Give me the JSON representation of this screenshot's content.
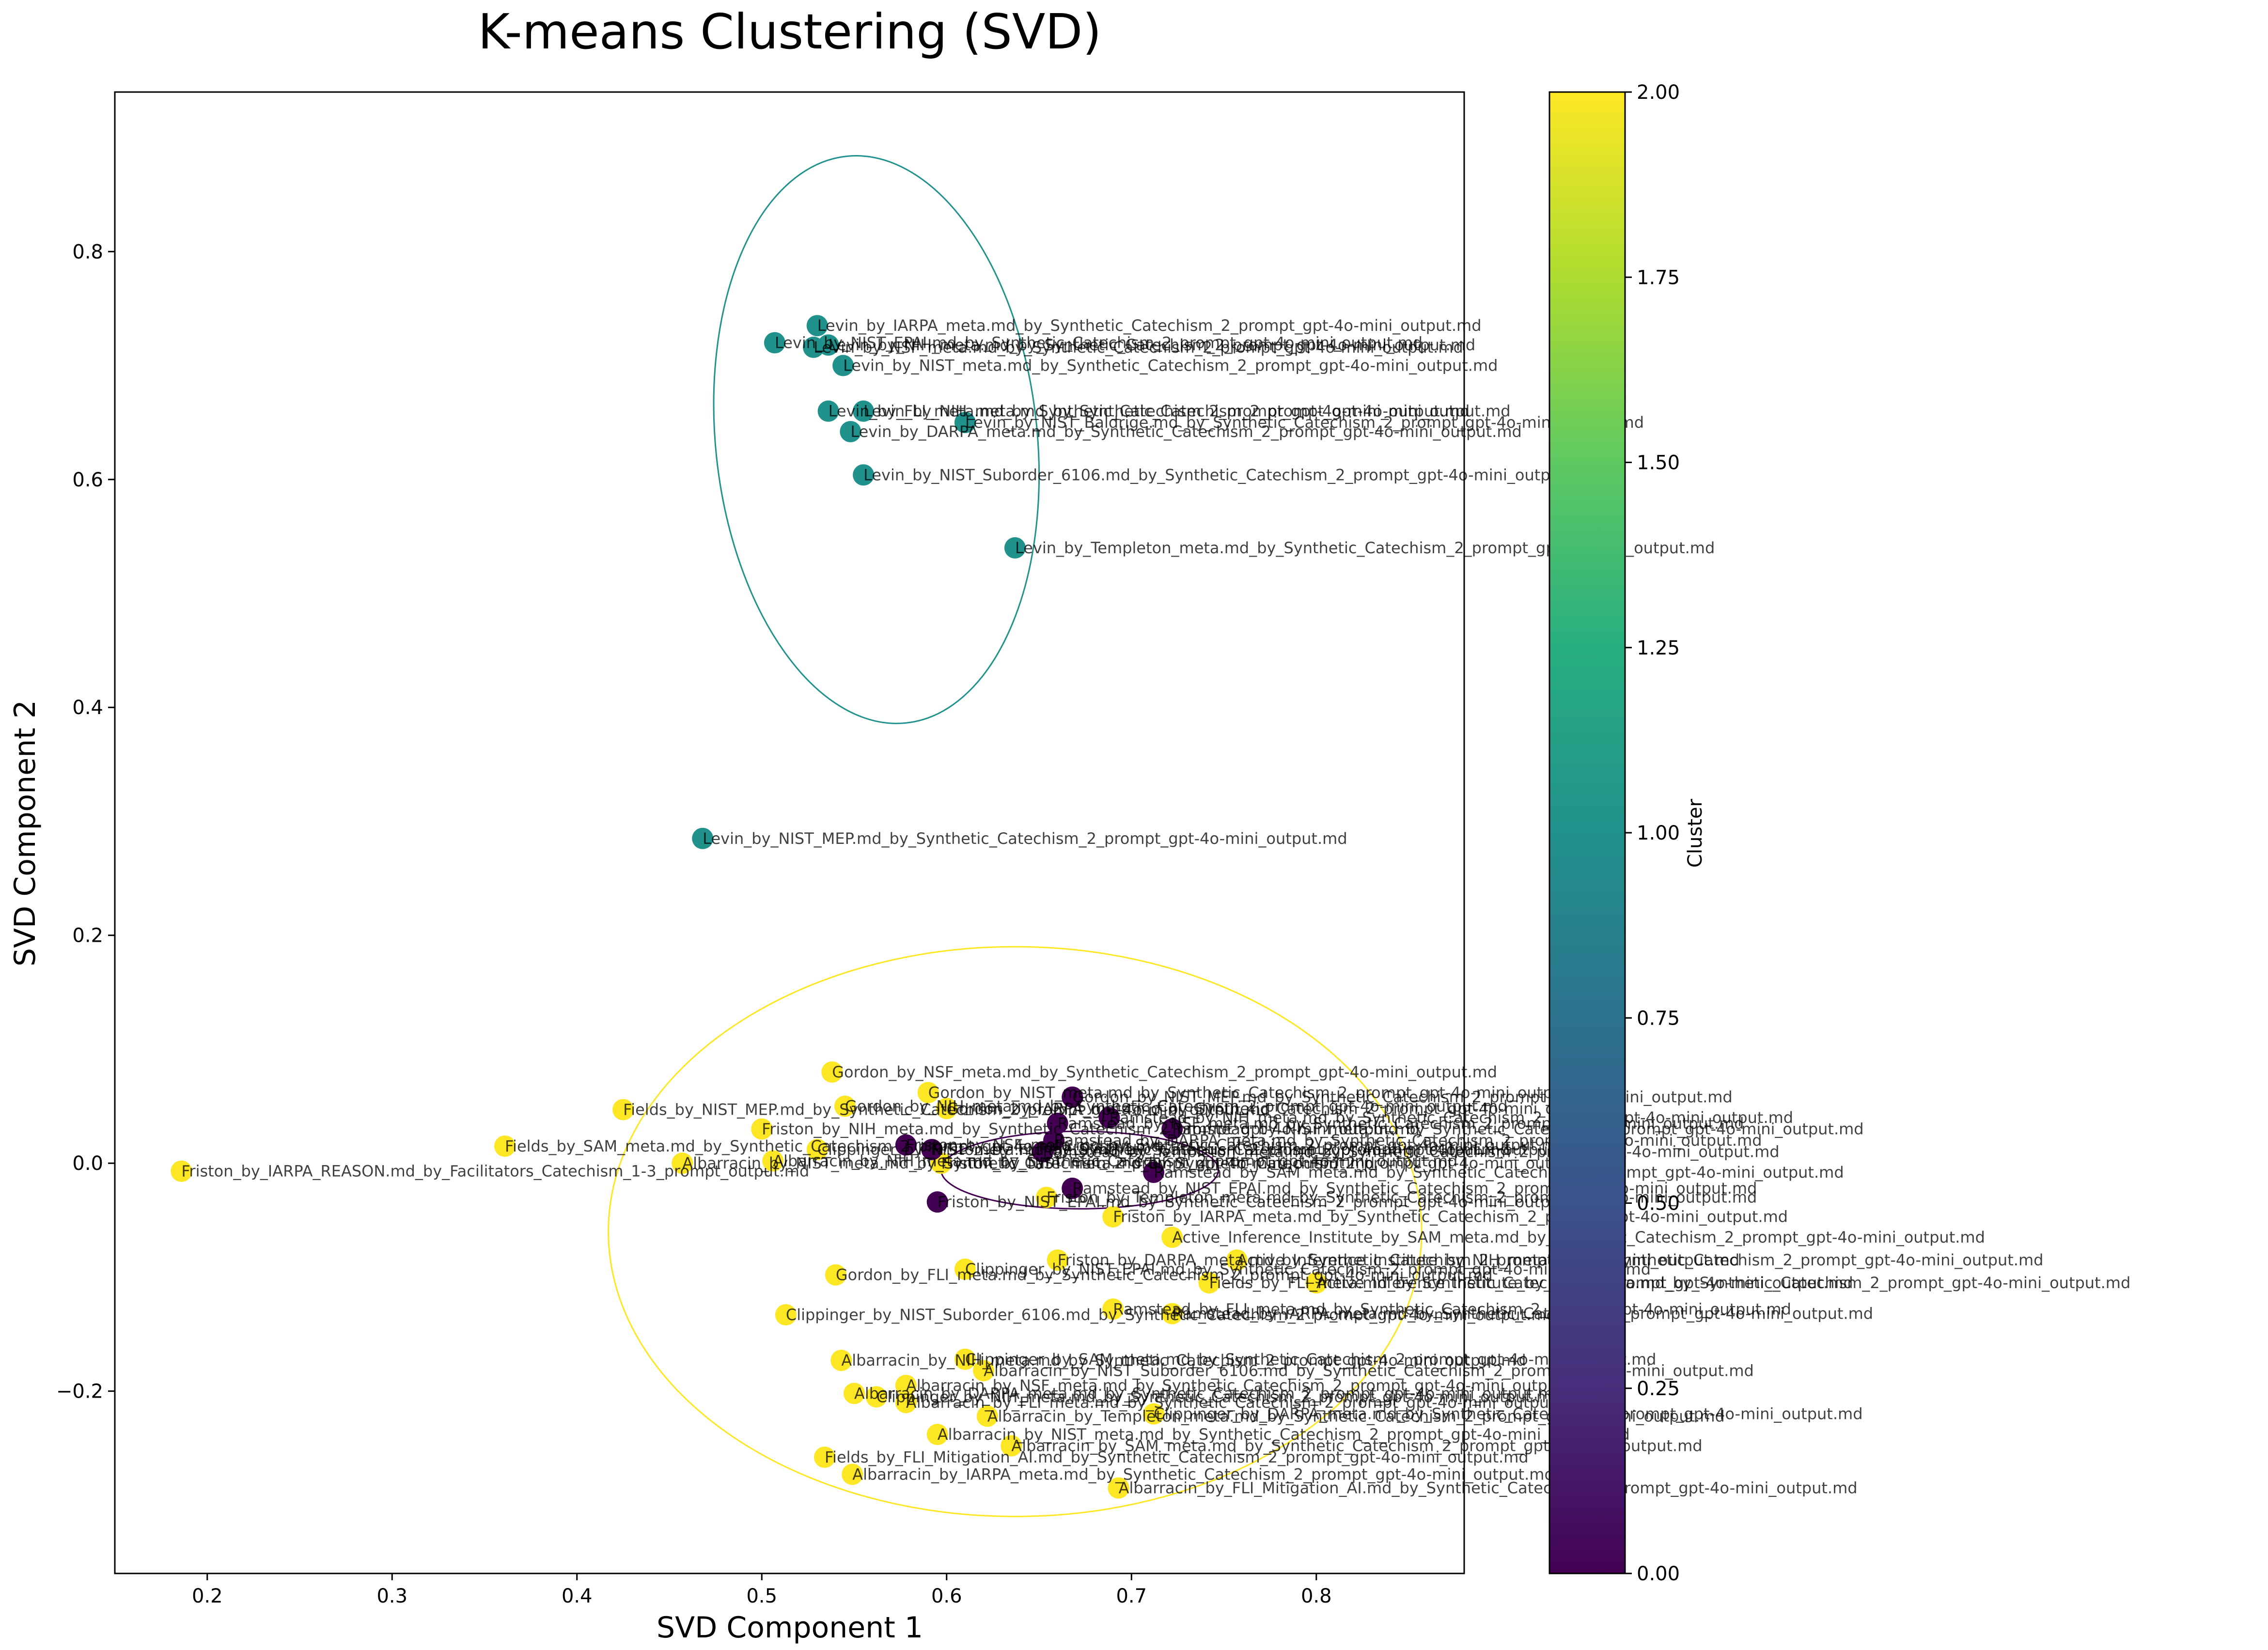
{
  "chart_data": {
    "type": "scatter",
    "title": "K-means Clustering (SVD)",
    "xlabel": "SVD Component 1",
    "ylabel": "SVD Component 2",
    "xlim": [
      0.15,
      0.88
    ],
    "ylim": [
      -0.36,
      0.94
    ],
    "xticks": [
      "0.2",
      "0.3",
      "0.4",
      "0.5",
      "0.6",
      "0.7",
      "0.8"
    ],
    "xtick_values": [
      0.2,
      0.3,
      0.4,
      0.5,
      0.6,
      0.7,
      0.8
    ],
    "yticks": [
      "−0.2",
      "0.0",
      "0.2",
      "0.4",
      "0.6",
      "0.8"
    ],
    "ytick_values": [
      -0.2,
      0.0,
      0.2,
      0.4,
      0.6,
      0.8
    ],
    "grid": false,
    "colormap": "viridis",
    "cluster_colors": [
      "#440154",
      "#21918c",
      "#fde725"
    ],
    "colorbar": {
      "label": "Cluster",
      "range": [
        0.0,
        2.0
      ],
      "ticks": [
        "0.00",
        "0.25",
        "0.50",
        "0.75",
        "1.00",
        "1.25",
        "1.50",
        "1.75",
        "2.00"
      ],
      "tick_values": [
        0.0,
        0.25,
        0.5,
        0.75,
        1.0,
        1.25,
        1.5,
        1.75,
        2.0
      ]
    },
    "ellipses": [
      {
        "cluster": 1,
        "cx": 0.562,
        "cy": 0.635,
        "rx": 0.087,
        "ry": 0.25,
        "angle": 6
      },
      {
        "cluster": 2,
        "cx": 0.637,
        "cy": -0.06,
        "rx": 0.22,
        "ry": 0.25,
        "angle": 0
      },
      {
        "cluster": 0,
        "cx": 0.672,
        "cy": -0.006,
        "rx": 0.075,
        "ry": 0.034,
        "angle": 0
      }
    ],
    "points": [
      {
        "x": 0.53,
        "y": 0.735,
        "c": 1,
        "label": "Levin_by_IARPA_meta.md_by_Synthetic_Catechism_2_prompt_gpt-4o-mini_output.md"
      },
      {
        "x": 0.507,
        "y": 0.72,
        "c": 1,
        "label": "Levin_by_NIST_EPAI.md_by_Synthetic_Catechism_2_prompt_gpt-4o-mini_output.md"
      },
      {
        "x": 0.528,
        "y": 0.716,
        "c": 1,
        "label": "Levin_by_NSF_meta.md_by_Synthetic_Catechism_2_prompt_gpt-4o-mini_output.md"
      },
      {
        "x": 0.536,
        "y": 0.718,
        "c": 1,
        "label": "Levin_by_NIH_meta.md_by_Synthetic_Catechism_2_prompt_gpt-4o-mini_output.md"
      },
      {
        "x": 0.544,
        "y": 0.7,
        "c": 1,
        "label": "Levin_by_NIST_meta.md_by_Synthetic_Catechism_2_prompt_gpt-4o-mini_output.md"
      },
      {
        "x": 0.536,
        "y": 0.66,
        "c": 1,
        "label": "Levin_by_FLI_meta.md_by_Synthetic_Catechism_2_prompt_gpt-4o-mini_output.md"
      },
      {
        "x": 0.555,
        "y": 0.66,
        "c": 1,
        "label": "Levin_by_NIH_meta.md_by_Synthetic_Catechism_2_prompt_gpt-4o-mini_output.md"
      },
      {
        "x": 0.61,
        "y": 0.65,
        "c": 1,
        "label": "Levin_by_NIST_Baldrige.md_by_Synthetic_Catechism_2_prompt_gpt-4o-mini_output.md"
      },
      {
        "x": 0.548,
        "y": 0.642,
        "c": 1,
        "label": "Levin_by_DARPA_meta.md_by_Synthetic_Catechism_2_prompt_gpt-4o-mini_output.md"
      },
      {
        "x": 0.555,
        "y": 0.604,
        "c": 1,
        "label": "Levin_by_NIST_Suborder_6106.md_by_Synthetic_Catechism_2_prompt_gpt-4o-mini_output.md"
      },
      {
        "x": 0.637,
        "y": 0.54,
        "c": 1,
        "label": "Levin_by_Templeton_meta.md_by_Synthetic_Catechism_2_prompt_gpt-4o-mini_output.md"
      },
      {
        "x": 0.468,
        "y": 0.285,
        "c": 1,
        "label": "Levin_by_NIST_MEP.md_by_Synthetic_Catechism_2_prompt_gpt-4o-mini_output.md"
      },
      {
        "x": 0.186,
        "y": -0.007,
        "c": 2,
        "label": "Friston_by_IARPA_REASON.md_by_Facilitators_Catechism_1-3_prompt_output.md"
      },
      {
        "x": 0.361,
        "y": 0.015,
        "c": 2,
        "label": "Fields_by_SAM_meta.md_by_Synthetic_Catechism_2_prompt_gpt-4o-mini_output.md"
      },
      {
        "x": 0.425,
        "y": 0.047,
        "c": 2,
        "label": "Fields_by_NIST_MEP.md_by_Synthetic_Catechism_2_prompt_gpt-4o-mini_output.md"
      },
      {
        "x": 0.457,
        "y": 0.0,
        "c": 2,
        "label": "Albarracin_by_NIST_meta.md_by_Synthetic_Catechism_2_prompt_gpt-4o-mini_output.md"
      },
      {
        "x": 0.5,
        "y": 0.03,
        "c": 2,
        "label": "Friston_by_NIH_meta.md_by_Synthetic_Catechism_2_prompt_gpt-4o-mini_output.md"
      },
      {
        "x": 0.538,
        "y": 0.08,
        "c": 2,
        "label": "Gordon_by_NSF_meta.md_by_Synthetic_Catechism_2_prompt_gpt-4o-mini_output.md"
      },
      {
        "x": 0.545,
        "y": 0.05,
        "c": 2,
        "label": "Gordon_by_NIH_meta.md_by_Synthetic_Catechism_2_prompt_gpt-4o-mini_output.md"
      },
      {
        "x": 0.59,
        "y": 0.062,
        "c": 2,
        "label": "Gordon_by_NIST_meta.md_by_Synthetic_Catechism_2_prompt_gpt-4o-mini_output.md"
      },
      {
        "x": 0.6,
        "y": 0.048,
        "c": 2,
        "label": "Gordon_by_IARPA_meta.md_by_Synthetic_Catechism_2_prompt_gpt-4o-mini_output.md"
      },
      {
        "x": 0.53,
        "y": 0.012,
        "c": 2,
        "label": "Clippinger_by_NIST_meta.md_by_Synthetic_Catechism_2_prompt_gpt-4o-mini_output.md"
      },
      {
        "x": 0.506,
        "y": 0.002,
        "c": 2,
        "label": "Albarracin_by_NIH_meta.md_by_Synthetic_Catechism_2_prompt_gpt-4o-mini_output.md"
      },
      {
        "x": 0.597,
        "y": 0.0,
        "c": 2,
        "label": "Friston_by_NIST_meta.md_by_Synthetic_Catechism_2_prompt_gpt-4o-mini_output.md"
      },
      {
        "x": 0.654,
        "y": -0.03,
        "c": 2,
        "label": "Friston_by_Templeton_meta.md_by_Synthetic_Catechism_2_prompt_gpt-4o-mini_output.md"
      },
      {
        "x": 0.69,
        "y": -0.047,
        "c": 2,
        "label": "Friston_by_IARPA_meta.md_by_Synthetic_Catechism_2_prompt_gpt-4o-mini_output.md"
      },
      {
        "x": 0.722,
        "y": -0.065,
        "c": 2,
        "label": "Active_Inference_Institute_by_SAM_meta.md_by_Synthetic_Catechism_2_prompt_gpt-4o-mini_output.md"
      },
      {
        "x": 0.66,
        "y": -0.085,
        "c": 2,
        "label": "Friston_by_DARPA_meta.md_by_Synthetic_Catechism_2_prompt_gpt-4o-mini_output.md"
      },
      {
        "x": 0.61,
        "y": -0.093,
        "c": 2,
        "label": "Clippinger_by_NIST_EPAI.md_by_Synthetic_Catechism_2_prompt_gpt-4o-mini_output.md"
      },
      {
        "x": 0.54,
        "y": -0.098,
        "c": 2,
        "label": "Gordon_by_FLI_meta.md_by_Synthetic_Catechism_2_prompt_gpt-4o-mini_output.md"
      },
      {
        "x": 0.742,
        "y": -0.105,
        "c": 2,
        "label": "Fields_by_FLI_meta.md_by_Synthetic_Catechism_2_prompt_gpt-4o-mini_output.md"
      },
      {
        "x": 0.8,
        "y": -0.105,
        "c": 2,
        "label": "Active_Inference_Institute_by_NIST_meta.md_by_Synthetic_Catechism_2_prompt_gpt-4o-mini_output.md"
      },
      {
        "x": 0.757,
        "y": -0.085,
        "c": 2,
        "label": "Active_Inference_Institute_by_NIH_meta.md_by_Synthetic_Catechism_2_prompt_gpt-4o-mini_output.md"
      },
      {
        "x": 0.69,
        "y": -0.128,
        "c": 2,
        "label": "Ramstead_by_FLI_meta.md_by_Synthetic_Catechism_2_prompt_gpt-4o-mini_output.md"
      },
      {
        "x": 0.722,
        "y": -0.132,
        "c": 2,
        "label": "Ramstead_by_IARPA_meta.md_by_Synthetic_Catechism_2_prompt_gpt-4o-mini_output.md"
      },
      {
        "x": 0.513,
        "y": -0.133,
        "c": 2,
        "label": "Clippinger_by_NIST_Suborder_6106.md_by_Synthetic_Catechism_2_prompt_gpt-4o-mini_output.md"
      },
      {
        "x": 0.543,
        "y": -0.173,
        "c": 2,
        "label": "Albarracin_by_NIH_meta.md_by_Synthetic_Catechism_2_prompt_gpt-4o-mini_output.md"
      },
      {
        "x": 0.61,
        "y": -0.172,
        "c": 2,
        "label": "Clippinger_by_SAM_meta.md_by_Synthetic_Catechism_2_prompt_gpt-4o-mini_output.md"
      },
      {
        "x": 0.62,
        "y": -0.182,
        "c": 2,
        "label": "Albarracin_by_NIST_Suborder_6106.md_by_Synthetic_Catechism_2_prompt_gpt-4o-mini_output.md"
      },
      {
        "x": 0.578,
        "y": -0.195,
        "c": 2,
        "label": "Albarracin_by_NSF_meta.md_by_Synthetic_Catechism_2_prompt_gpt-4o-mini_output.md"
      },
      {
        "x": 0.55,
        "y": -0.202,
        "c": 2,
        "label": "Albarracin_by_DARPA_meta.md_by_Synthetic_Catechism_2_prompt_gpt-4o-mini_output.md"
      },
      {
        "x": 0.562,
        "y": -0.205,
        "c": 2,
        "label": "Clippinger_by_NIH_meta.md_by_Synthetic_Catechism_2_prompt_gpt-4o-mini_output.md"
      },
      {
        "x": 0.578,
        "y": -0.21,
        "c": 2,
        "label": "Albarracin_by_FLI_meta.md_by_Synthetic_Catechism_2_prompt_gpt-4o-mini_output.md"
      },
      {
        "x": 0.622,
        "y": -0.222,
        "c": 2,
        "label": "Albarracin_by_Templeton_meta.md_by_Synthetic_Catechism_2_prompt_gpt-4o-mini_output.md"
      },
      {
        "x": 0.712,
        "y": -0.22,
        "c": 2,
        "label": "Clippinger_by_DARPA_meta.md_by_Synthetic_Catechism_2_prompt_gpt-4o-mini_output.md"
      },
      {
        "x": 0.595,
        "y": -0.238,
        "c": 2,
        "label": "Albarracin_by_NIST_meta.md_by_Synthetic_Catechism_2_prompt_gpt-4o-mini_output.md"
      },
      {
        "x": 0.635,
        "y": -0.248,
        "c": 2,
        "label": "Albarracin_by_SAM_meta.md_by_Synthetic_Catechism_2_prompt_gpt-4o-mini_output.md"
      },
      {
        "x": 0.534,
        "y": -0.258,
        "c": 2,
        "label": "Fields_by_FLI_Mitigation_AI.md_by_Synthetic_Catechism_2_prompt_gpt-4o-mini_output.md"
      },
      {
        "x": 0.549,
        "y": -0.273,
        "c": 2,
        "label": "Albarracin_by_IARPA_meta.md_by_Synthetic_Catechism_2_prompt_gpt-4o-mini_output.md"
      },
      {
        "x": 0.693,
        "y": -0.285,
        "c": 2,
        "label": "Albarracin_by_FLI_Mitigation_AI.md_by_Synthetic_Catechism_2_prompt_gpt-4o-mini_output.md"
      },
      {
        "x": 0.668,
        "y": 0.058,
        "c": 0,
        "label": "Gordon_by_NIST_MEP.md_by_Synthetic_Catechism_2_prompt_gpt-4o-mini_output.md"
      },
      {
        "x": 0.688,
        "y": 0.04,
        "c": 0,
        "label": "Ramstead_by_NIH_meta.md_by_Synthetic_Catechism_2_prompt_gpt-4o-mini_output.md"
      },
      {
        "x": 0.66,
        "y": 0.035,
        "c": 0,
        "label": "Ramstead_by_NSF_meta.md_by_Synthetic_Catechism_2_prompt_gpt-4o-mini_output.md"
      },
      {
        "x": 0.722,
        "y": 0.03,
        "c": 0,
        "label": "Ramstead_by_NIST_meta.md_by_Synthetic_Catechism_2_prompt_gpt-4o-mini_output.md"
      },
      {
        "x": 0.658,
        "y": 0.02,
        "c": 0,
        "label": "Ramstead_by_DARPA_meta.md_by_Synthetic_Catechism_2_prompt_gpt-4o-mini_output.md"
      },
      {
        "x": 0.578,
        "y": 0.016,
        "c": 0,
        "label": "Friston_by_NSF_meta.md_by_Synthetic_Catechism_2_prompt_gpt-4o-mini_output.md"
      },
      {
        "x": 0.592,
        "y": 0.012,
        "c": 0,
        "label": "Friston_by_FLI_meta.md_by_Synthetic_Catechism_2_prompt_gpt-4o-mini_output.md"
      },
      {
        "x": 0.652,
        "y": 0.01,
        "c": 0,
        "label": "Ramstead_by_Templeton_meta.md_by_Synthetic_Catechism_2_prompt_gpt-4o-mini_output.md"
      },
      {
        "x": 0.712,
        "y": -0.008,
        "c": 0,
        "label": "Ramstead_by_SAM_meta.md_by_Synthetic_Catechism_2_prompt_gpt-4o-mini_output.md"
      },
      {
        "x": 0.668,
        "y": -0.022,
        "c": 0,
        "label": "Ramstead_by_NIST_EPAI.md_by_Synthetic_Catechism_2_prompt_gpt-4o-mini_output.md"
      },
      {
        "x": 0.595,
        "y": -0.034,
        "c": 0,
        "label": "Friston_by_NIST_EPAI.md_by_Synthetic_Catechism_2_prompt_gpt-4o-mini_output.md"
      }
    ]
  }
}
